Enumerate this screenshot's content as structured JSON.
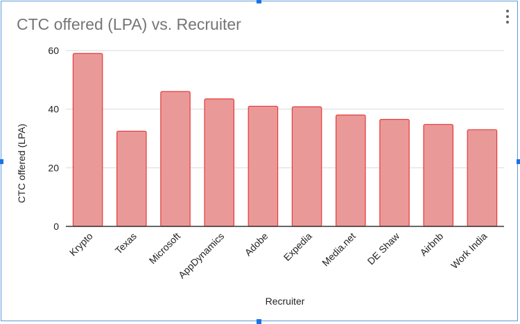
{
  "chart_data": {
    "type": "bar",
    "title": "CTC offered (LPA) vs. Recruiter",
    "xlabel": "Recruiter",
    "ylabel": "CTC offered (LPA)",
    "categories": [
      "Krypto",
      "Texas",
      "Microsoft",
      "AppDynamics",
      "Adobe",
      "Expedia",
      "Media.net",
      "DE Shaw",
      "Airbnb",
      "Work India"
    ],
    "values": [
      59,
      32.5,
      46,
      43.5,
      41,
      40.8,
      38,
      36.5,
      34.8,
      33
    ],
    "ylim": [
      0,
      60
    ],
    "yticks": [
      0,
      20,
      40,
      60
    ],
    "grid": true,
    "legend": "none",
    "colors": {
      "bar_fill": "#ea9999",
      "bar_stroke": "#e53935",
      "grid": "#d9d9d9",
      "axis": "#333333"
    }
  },
  "menu": {
    "icon": "more-vert-icon"
  }
}
